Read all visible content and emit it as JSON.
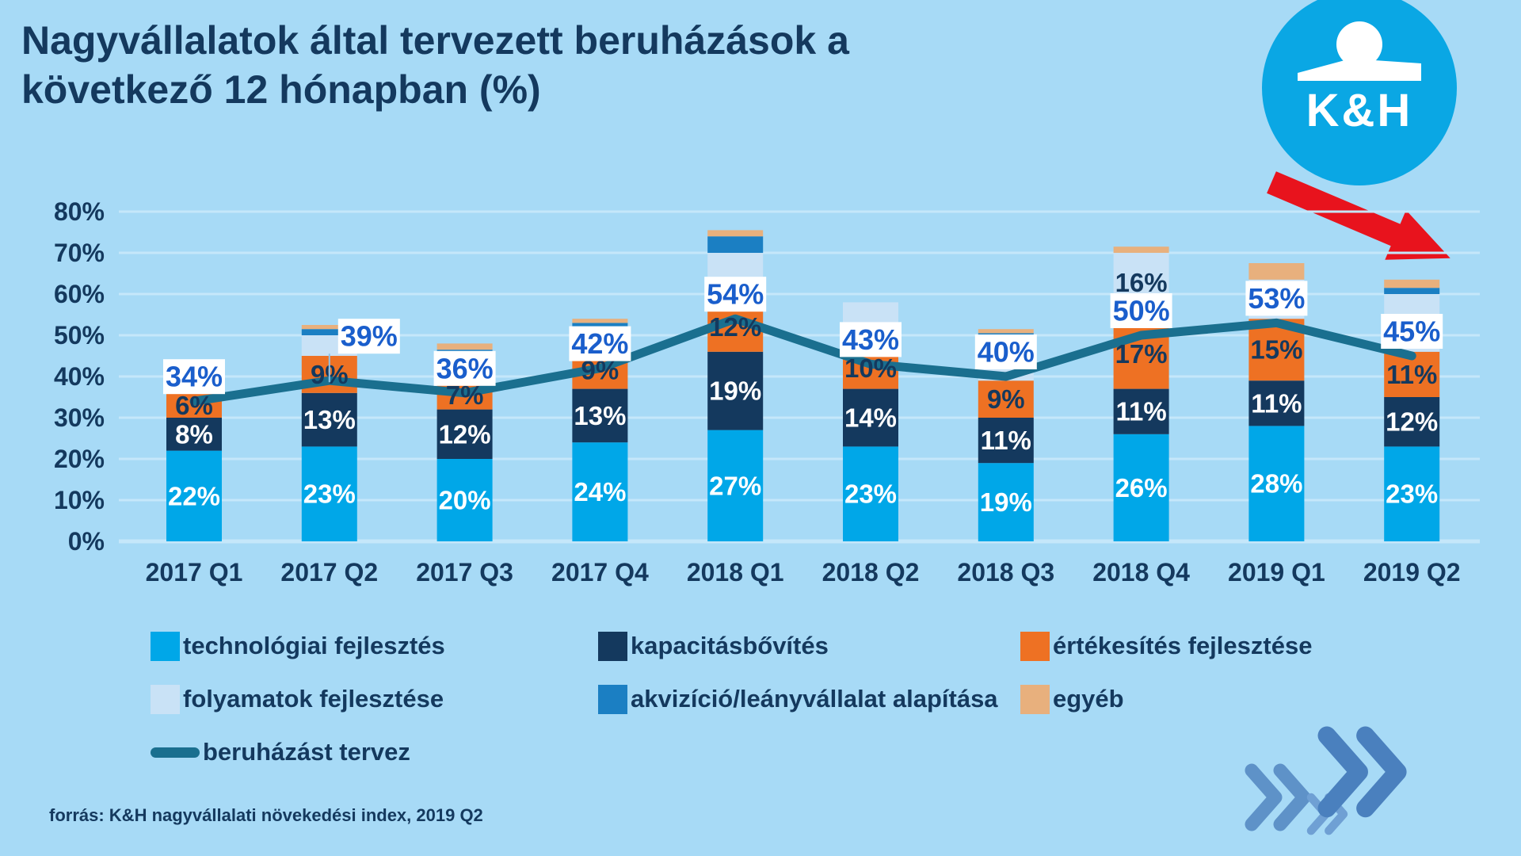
{
  "title": {
    "line1": "Nagyvállalatok által tervezett beruházások a",
    "line2": "következő 12 hónapban (%)"
  },
  "logo": {
    "brand": "K&H"
  },
  "source_note": "forrás: K&H nagyvállalati növekedési index, 2019 Q2",
  "colors": {
    "background": "#A7DAF6",
    "title_text": "#14395E",
    "axis_text": "#14395E",
    "gridline": "#C5E7FA",
    "bar_technologiai": "#00A7E8",
    "bar_kapacitas": "#14395E",
    "bar_ertekesites": "#EE7123",
    "bar_folyamatok": "#C9E2F6",
    "bar_akvizicio": "#1B7FC3",
    "bar_egyeb": "#E8B07D",
    "trend_line": "#1A6F8F",
    "line_label_text": "#1A5ECC",
    "line_label_box": "#FFFFFF",
    "logo_blue": "#0AA7E4",
    "arrow_red": "#E8131D",
    "chevron_blue": "#4A80BE"
  },
  "legend": [
    {
      "label": "technológiai fejlesztés",
      "swatch": "square",
      "color": "#00A7E8",
      "row": 0,
      "col": 0
    },
    {
      "label": "kapacitásbővítés",
      "swatch": "square",
      "color": "#14395E",
      "row": 0,
      "col": 1
    },
    {
      "label": "értékesítés fejlesztése",
      "swatch": "square",
      "color": "#EE7123",
      "row": 0,
      "col": 2
    },
    {
      "label": "folyamatok fejlesztése",
      "swatch": "square",
      "color": "#C9E2F6",
      "row": 1,
      "col": 0
    },
    {
      "label": "akvizíció/leányvállalat alapítása",
      "swatch": "square",
      "color": "#1B7FC3",
      "row": 1,
      "col": 1
    },
    {
      "label": "egyéb",
      "swatch": "square",
      "color": "#E8B07D",
      "row": 1,
      "col": 2
    },
    {
      "label": "beruházást tervez",
      "swatch": "line",
      "color": "#1A6F8F",
      "row": 2,
      "col": 0
    }
  ],
  "chart_data": {
    "type": "bar",
    "subtype": "stacked-bars-with-line-overlay",
    "title": "Nagyvállalatok által tervezett beruházások a következő 12 hónapban (%)",
    "categories": [
      "2017 Q1",
      "2017 Q2",
      "2017 Q3",
      "2017 Q4",
      "2018 Q1",
      "2018 Q2",
      "2018 Q3",
      "2018 Q4",
      "2019 Q1",
      "2019 Q2"
    ],
    "series": [
      {
        "name": "technológiai fejlesztés",
        "color": "#00A7E8",
        "values": [
          22,
          23,
          20,
          24,
          27,
          23,
          19,
          26,
          28,
          23
        ]
      },
      {
        "name": "kapacitásbővítés",
        "color": "#14395E",
        "values": [
          8,
          13,
          12,
          13,
          19,
          14,
          11,
          11,
          11,
          12
        ]
      },
      {
        "name": "értékesítés fejlesztése",
        "color": "#EE7123",
        "values": [
          6,
          9,
          7,
          9,
          12,
          10,
          9,
          17,
          15,
          11
        ]
      },
      {
        "name": "folyamatok fejlesztése",
        "color": "#C9E2F6",
        "values": [
          0,
          5,
          7,
          6,
          12,
          11,
          11,
          16,
          9.5,
          14
        ]
      },
      {
        "name": "akvizíció/leányvállalat alapítása",
        "color": "#1B7FC3",
        "values": [
          0,
          1.5,
          0.5,
          1,
          4,
          0,
          0.5,
          0,
          0,
          1.5
        ]
      },
      {
        "name": "egyéb",
        "color": "#E8B07D",
        "values": [
          0,
          1,
          1.5,
          1,
          1.5,
          0,
          1,
          1.5,
          4,
          2
        ]
      }
    ],
    "line_series": {
      "name": "beruházást tervez",
      "color": "#1A6F8F",
      "values": [
        34,
        39,
        36,
        42,
        54,
        43,
        40,
        50,
        53,
        45
      ]
    },
    "ylim": [
      0,
      80
    ],
    "yticks": [
      "0%",
      "10%",
      "20%",
      "30%",
      "40%",
      "50%",
      "60%",
      "70%",
      "80%"
    ],
    "grid": true,
    "legend_position": "bottom",
    "note": "Only the bottom three segments carry printed labels in every bar, plus the 16% folyamatok segment in 2018 Q4 and the line labels; remaining small segment values are estimated from bar heights."
  }
}
